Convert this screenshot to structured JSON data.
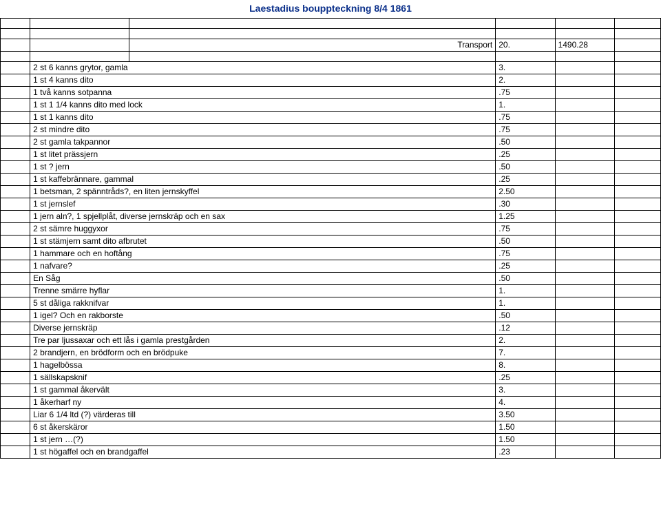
{
  "header": {
    "title": "Laestadius bouppteckning 8/4 1861"
  },
  "transport": {
    "label": "Transport",
    "val1": "20.",
    "val2": "1490.28"
  },
  "rows": [
    {
      "desc": "2 st 6 kanns grytor, gamla",
      "v": "3."
    },
    {
      "desc": "1 st 4 kanns dito",
      "v": "2."
    },
    {
      "desc": "1 två kanns sotpanna",
      "v": ".75"
    },
    {
      "desc": "1 st 1 1/4 kanns dito med lock",
      "v": "1."
    },
    {
      "desc": "1 st 1 kanns dito",
      "v": ".75"
    },
    {
      "desc": "2 st mindre dito",
      "v": ".75"
    },
    {
      "desc": "2 st gamla takpannor",
      "v": ".50"
    },
    {
      "desc": "1 st litet prässjern",
      "v": ".25"
    },
    {
      "desc": "1 st ? jern",
      "v": ".50"
    },
    {
      "desc": "1 st kaffebrännare, gammal",
      "v": ".25"
    },
    {
      "desc": "1 betsman, 2 spänntråds?, en liten jernskyffel",
      "v": "2.50"
    },
    {
      "desc": "1 st jernslef",
      "v": ".30"
    },
    {
      "desc": "1 jern aln?, 1 spjellplåt, diverse jernskräp och en sax",
      "v": "1.25"
    },
    {
      "desc": "2 st sämre huggyxor",
      "v": ".75"
    },
    {
      "desc": "1 st stämjern samt dito afbrutet",
      "v": ".50"
    },
    {
      "desc": "1 hammare och en hoftång",
      "v": ".75"
    },
    {
      "desc": "1 nafvare?",
      "v": ".25"
    },
    {
      "desc": "En Såg",
      "v": ".50"
    },
    {
      "desc": "Trenne smärre hyflar",
      "v": "1."
    },
    {
      "desc": "5 st dåliga rakknifvar",
      "v": "1."
    },
    {
      "desc": "1 igel? Och en rakborste",
      "v": ".50"
    },
    {
      "desc": "Diverse jernskräp",
      "v": ".12"
    },
    {
      "desc": "Tre par ljussaxar och ett lås i gamla prestgården",
      "v": "2."
    },
    {
      "desc": "2 brandjern, en brödform och en brödpuke",
      "v": "7."
    },
    {
      "desc": "1 hagelbössa",
      "v": "8."
    },
    {
      "desc": "1 sällskapsknif",
      "v": ".25"
    },
    {
      "desc": "1 st gammal åkervält",
      "v": "3."
    },
    {
      "desc": "1 åkerharf ny",
      "v": "4."
    },
    {
      "desc": "Liar 6 1/4 ltd (?) värderas till",
      "v": "3.50"
    },
    {
      "desc": "6 st åkerskäror",
      "v": "1.50"
    },
    {
      "desc": "1 st jern …(?)",
      "v": "1.50"
    },
    {
      "desc": "1 st högaffel och en brandgaffel",
      "v": ".23"
    }
  ],
  "blanks_before_transport": 2,
  "blanks_after_transport": 1
}
